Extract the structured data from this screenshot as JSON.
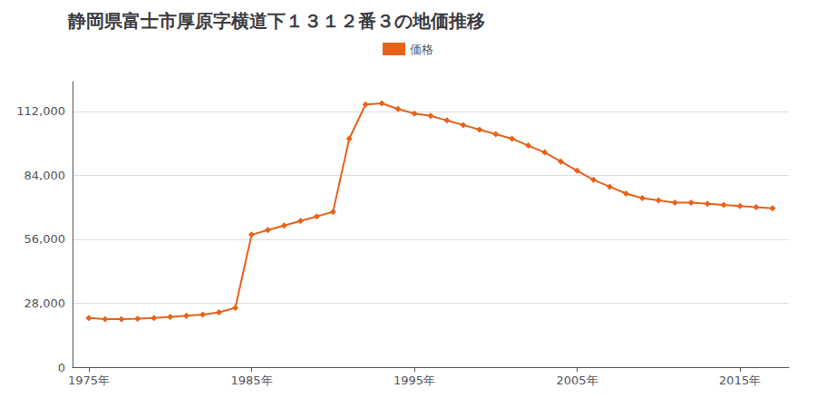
{
  "chart_data": {
    "type": "line",
    "title": "静岡県富士市厚原字横道下１３１２番３の地価推移",
    "series": [
      {
        "name": "価格",
        "color": "#e8621a",
        "marker": "diamond",
        "values": [
          21500,
          21000,
          21000,
          21200,
          21500,
          22000,
          22500,
          23000,
          24000,
          26000,
          58000,
          60000,
          62000,
          64000,
          66000,
          68000,
          100000,
          115000,
          115500,
          113000,
          111000,
          110000,
          108000,
          106000,
          104000,
          102000,
          100000,
          97000,
          94000,
          90000,
          86000,
          82000,
          79000,
          76000,
          74000,
          73000,
          72000,
          72000,
          71500,
          71000,
          70500,
          70000,
          69500
        ]
      }
    ],
    "x": [
      1975,
      1976,
      1977,
      1978,
      1979,
      1980,
      1981,
      1982,
      1983,
      1984,
      1985,
      1986,
      1987,
      1988,
      1989,
      1990,
      1991,
      1992,
      1993,
      1994,
      1995,
      1996,
      1997,
      1998,
      1999,
      2000,
      2001,
      2002,
      2003,
      2004,
      2005,
      2006,
      2007,
      2008,
      2009,
      2010,
      2011,
      2012,
      2013,
      2014,
      2015,
      2016,
      2017
    ],
    "xlim": [
      1974,
      2018
    ],
    "xticks": [
      {
        "value": 1975,
        "label": "1975年"
      },
      {
        "value": 1985,
        "label": "1985年"
      },
      {
        "value": 1995,
        "label": "1995年"
      },
      {
        "value": 2005,
        "label": "2005年"
      },
      {
        "value": 2015,
        "label": "2015年"
      }
    ],
    "ylim": [
      0,
      125000
    ],
    "yticks": [
      0,
      {
        "value": 28000,
        "label": "28,000"
      },
      {
        "value": 56000,
        "label": "56,000"
      },
      {
        "value": 84000,
        "label": "84,000"
      },
      {
        "value": 112000,
        "label": "112,000"
      }
    ],
    "grid": true,
    "legend": "top"
  }
}
